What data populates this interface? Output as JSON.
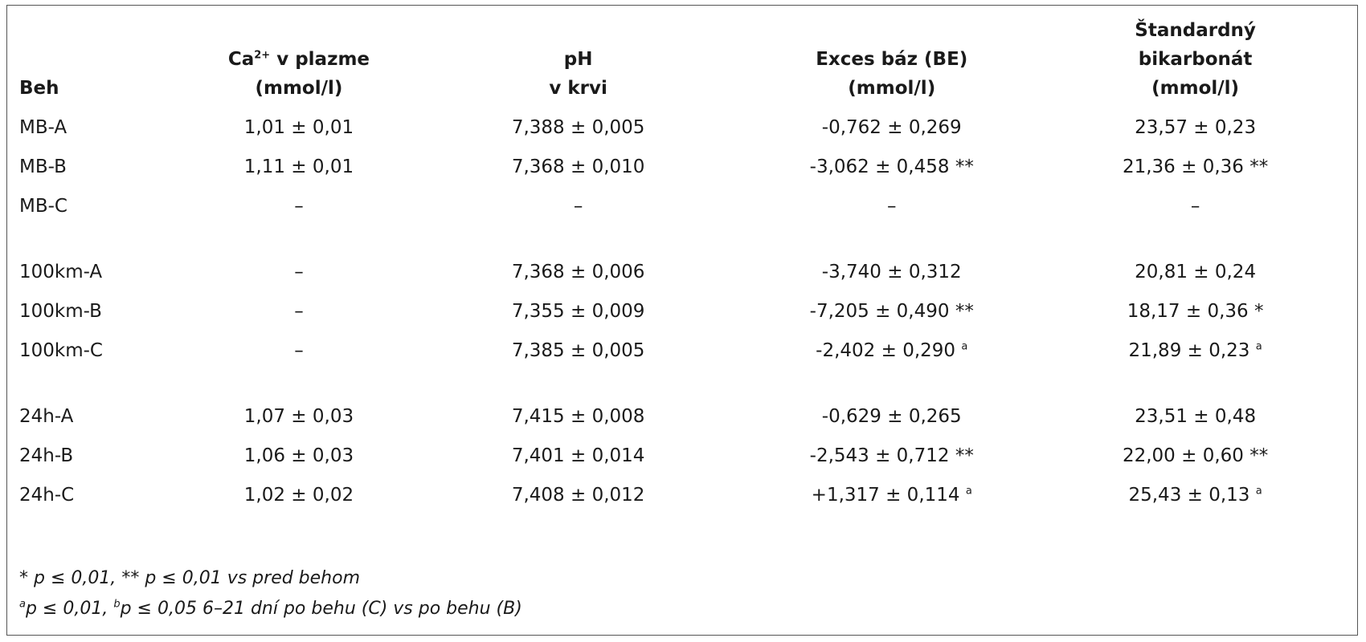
{
  "table": {
    "headers": [
      {
        "line1": "Beh"
      },
      {
        "line1a": "Ca",
        "sup": "2+",
        "line1b": " v plazme",
        "line2": "(mmol/l)"
      },
      {
        "line1": "pH",
        "line2": "v krvi"
      },
      {
        "line1": "Exces báz (BE)",
        "line2": "(mmol/l)"
      },
      {
        "line1": "Štandardný",
        "line2": "bikarbonát",
        "line3": "(mmol/l)"
      }
    ],
    "groups": [
      [
        {
          "run": "MB-A",
          "ca": "1,01 ± 0,01",
          "ph": "7,388 ± 0,005",
          "be": "-0,762 ± 0,269",
          "be_mark": "",
          "bic": "23,57 ± 0,23",
          "bic_mark": ""
        },
        {
          "run": "MB-B",
          "ca": "1,11 ± 0,01",
          "ph": "7,368 ± 0,010",
          "be": "-3,062 ± 0,458",
          "be_mark": " **",
          "bic": "21,36 ± 0,36",
          "bic_mark": " **"
        },
        {
          "run": "MB-C",
          "ca": "–",
          "ph": "–",
          "be": "–",
          "be_mark": "",
          "bic": "–",
          "bic_mark": ""
        }
      ],
      [
        {
          "run": "100km-A",
          "ca": "–",
          "ph": "7,368 ± 0,006",
          "be": "-3,740 ± 0,312",
          "be_mark": "",
          "bic": "20,81 ± 0,24",
          "bic_mark": ""
        },
        {
          "run": "100km-B",
          "ca": "–",
          "ph": "7,355 ± 0,009",
          "be": "-7,205 ± 0,490",
          "be_mark": " **",
          "bic": "18,17 ± 0,36",
          "bic_mark": " *"
        },
        {
          "run": "100km-C",
          "ca": "–",
          "ph": "7,385 ± 0,005",
          "be": "-2,402 ± 0,290",
          "be_sup": "a",
          "bic": "21,89 ± 0,23",
          "bic_sup": "a"
        }
      ],
      [
        {
          "run": "24h-A",
          "ca": "1,07 ± 0,03",
          "ph": "7,415 ± 0,008",
          "be": "-0,629 ± 0,265",
          "be_mark": "",
          "bic": "23,51 ± 0,48",
          "bic_mark": ""
        },
        {
          "run": "24h-B",
          "ca": "1,06 ± 0,03",
          "ph": "7,401 ± 0,014",
          "be": "-2,543 ± 0,712",
          "be_mark": " **",
          "bic": "22,00 ± 0,60",
          "bic_mark": " **"
        },
        {
          "run": "24h-C",
          "ca": "1,02 ± 0,02",
          "ph": "7,408 ± 0,012",
          "be": "+1,317 ± 0,114",
          "be_sup": "a",
          "bic": "25,43 ± 0,13",
          "bic_sup": "a"
        }
      ]
    ]
  },
  "footnotes": {
    "line1": "* p ≤ 0,01, ** p ≤ 0,01 vs pred behom",
    "line2_sup_a": "a",
    "line2_part1": "p ≤ 0,01, ",
    "line2_sup_b": "b",
    "line2_part2": "p ≤ 0,05 6–21 dní po behu (C) vs po behu (B)"
  }
}
